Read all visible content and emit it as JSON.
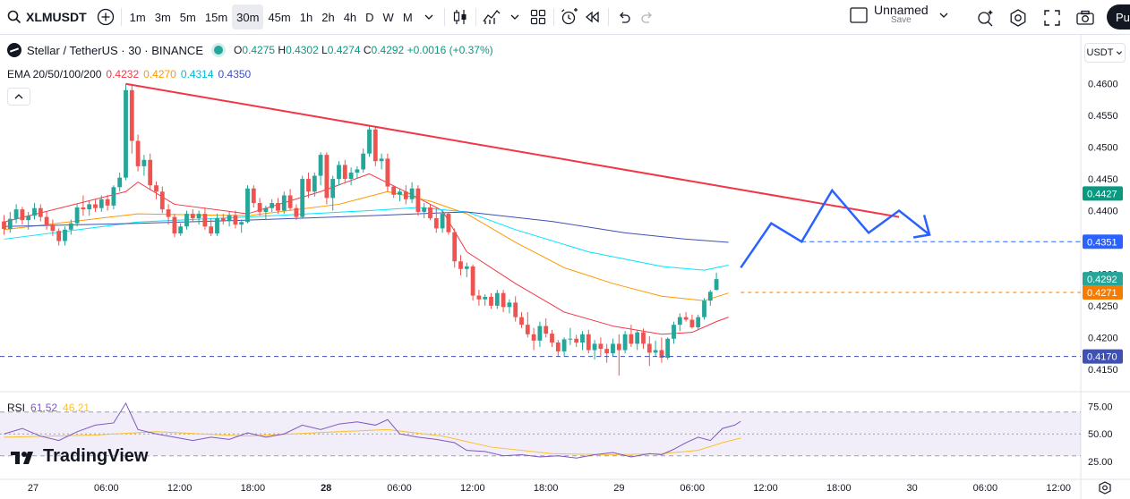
{
  "toolbar": {
    "symbol": "XLMUSDT",
    "intervals": [
      "1m",
      "3m",
      "5m",
      "15m",
      "30m",
      "45m",
      "1h",
      "2h",
      "4h",
      "D",
      "W",
      "M"
    ],
    "active_interval": "30m",
    "layout_name": "Unnamed",
    "layout_status": "Save",
    "publish_label": "Pu"
  },
  "legend": {
    "title": "Stellar / TetherUS · 30 · BINANCE",
    "o_label": "O",
    "o": "0.4275",
    "h_label": "H",
    "h": "0.4302",
    "l_label": "L",
    "l": "0.4274",
    "c_label": "C",
    "c": "0.4292",
    "change": "+0.0016 (+0.37%)"
  },
  "ema": {
    "label": "EMA 20/50/100/200",
    "values": [
      "0.4232",
      "0.4270",
      "0.4314",
      "0.4350"
    ],
    "colors": [
      "#f23645",
      "#ff9800",
      "#00e5ff",
      "#3f51b5"
    ]
  },
  "rsi": {
    "label": "RSI",
    "value": "61.52",
    "ma": "46.21",
    "line_color": "#7e57c2",
    "ma_color": "#fbc02d"
  },
  "unit": "USDT",
  "brand": "TradingView",
  "colors": {
    "up": "#26a69a",
    "down": "#ef5350",
    "trendline": "#f23645",
    "projection": "#2962ff",
    "support": "#3f51b5"
  },
  "chart_data": {
    "type": "candlestick",
    "price_axis": [
      "0.4600",
      "0.4550",
      "0.4500",
      "0.4450",
      "0.4400",
      "0.4350",
      "0.4300",
      "0.4250",
      "0.4200",
      "0.4150"
    ],
    "price_range": [
      0.4137,
      0.4625
    ],
    "price_tags": [
      {
        "value": "0.4427",
        "color": "#089981"
      },
      {
        "value": "0.4351",
        "color": "#2962ff"
      },
      {
        "value": "0.4292",
        "color": "#26a69a"
      },
      {
        "value": "0.4271",
        "color": "#f57c00"
      },
      {
        "value": "0.4170",
        "color": "#3f51b5"
      }
    ],
    "time_axis": [
      "27",
      "06:00",
      "12:00",
      "18:00",
      "28",
      "06:00",
      "12:00",
      "18:00",
      "29",
      "06:00",
      "12:00",
      "18:00",
      "30",
      "06:00",
      "12:00"
    ],
    "rsi_axis": [
      "75.00",
      "50.00",
      "25.00"
    ],
    "rsi_range": [
      20,
      82
    ],
    "candles": [
      [
        0.4383,
        0.4393,
        0.4362,
        0.4371
      ],
      [
        0.4371,
        0.4398,
        0.4365,
        0.4387
      ],
      [
        0.4387,
        0.441,
        0.438,
        0.4402
      ],
      [
        0.4402,
        0.4406,
        0.4378,
        0.4385
      ],
      [
        0.4385,
        0.4398,
        0.437,
        0.4392
      ],
      [
        0.4392,
        0.4412,
        0.4386,
        0.4404
      ],
      [
        0.4404,
        0.441,
        0.4383,
        0.439
      ],
      [
        0.439,
        0.4398,
        0.437,
        0.4378
      ],
      [
        0.4378,
        0.4386,
        0.436,
        0.4368
      ],
      [
        0.4368,
        0.4372,
        0.4345,
        0.4352
      ],
      [
        0.4352,
        0.4375,
        0.4345,
        0.437
      ],
      [
        0.437,
        0.4386,
        0.4362,
        0.438
      ],
      [
        0.438,
        0.441,
        0.4375,
        0.4405
      ],
      [
        0.4405,
        0.4424,
        0.4392,
        0.4402
      ],
      [
        0.4402,
        0.4415,
        0.4392,
        0.441
      ],
      [
        0.441,
        0.4418,
        0.4398,
        0.4404
      ],
      [
        0.4404,
        0.4424,
        0.4398,
        0.4418
      ],
      [
        0.4418,
        0.4425,
        0.44,
        0.4408
      ],
      [
        0.4408,
        0.444,
        0.4402,
        0.4437
      ],
      [
        0.4437,
        0.446,
        0.443,
        0.4452
      ],
      [
        0.4452,
        0.46,
        0.4448,
        0.459
      ],
      [
        0.459,
        0.46,
        0.449,
        0.451
      ],
      [
        0.451,
        0.452,
        0.4462,
        0.447
      ],
      [
        0.447,
        0.4488,
        0.4455,
        0.448
      ],
      [
        0.448,
        0.449,
        0.4432,
        0.444
      ],
      [
        0.444,
        0.4446,
        0.4418,
        0.443
      ],
      [
        0.443,
        0.4438,
        0.4396,
        0.4402
      ],
      [
        0.4402,
        0.441,
        0.4378,
        0.439
      ],
      [
        0.439,
        0.4395,
        0.4358,
        0.4364
      ],
      [
        0.4364,
        0.438,
        0.436,
        0.4375
      ],
      [
        0.4375,
        0.44,
        0.437,
        0.4395
      ],
      [
        0.4395,
        0.4402,
        0.4382,
        0.4388
      ],
      [
        0.4388,
        0.44,
        0.4378,
        0.4395
      ],
      [
        0.4395,
        0.4405,
        0.437,
        0.4375
      ],
      [
        0.4375,
        0.4388,
        0.436,
        0.4364
      ],
      [
        0.4364,
        0.4395,
        0.436,
        0.4388
      ],
      [
        0.4388,
        0.4395,
        0.4378,
        0.4384
      ],
      [
        0.4384,
        0.4398,
        0.4375,
        0.4393
      ],
      [
        0.4393,
        0.44,
        0.4372,
        0.4378
      ],
      [
        0.4378,
        0.4386,
        0.4365,
        0.4382
      ],
      [
        0.4382,
        0.444,
        0.438,
        0.4435
      ],
      [
        0.4435,
        0.444,
        0.4405,
        0.4412
      ],
      [
        0.4412,
        0.442,
        0.4392,
        0.4398
      ],
      [
        0.4398,
        0.4408,
        0.4385,
        0.4404
      ],
      [
        0.4404,
        0.4418,
        0.4398,
        0.4412
      ],
      [
        0.4412,
        0.442,
        0.4395,
        0.44
      ],
      [
        0.44,
        0.443,
        0.4395,
        0.4424
      ],
      [
        0.4424,
        0.4434,
        0.44,
        0.4404
      ],
      [
        0.4404,
        0.441,
        0.4385,
        0.439
      ],
      [
        0.439,
        0.4455,
        0.4388,
        0.445
      ],
      [
        0.445,
        0.446,
        0.442,
        0.443
      ],
      [
        0.443,
        0.446,
        0.4422,
        0.4455
      ],
      [
        0.4455,
        0.4492,
        0.444,
        0.4488
      ],
      [
        0.4488,
        0.4492,
        0.441,
        0.442
      ],
      [
        0.442,
        0.4455,
        0.44,
        0.445
      ],
      [
        0.445,
        0.4478,
        0.444,
        0.4472
      ],
      [
        0.4472,
        0.448,
        0.4445,
        0.445
      ],
      [
        0.445,
        0.4468,
        0.444,
        0.446
      ],
      [
        0.446,
        0.447,
        0.445,
        0.4465
      ],
      [
        0.4465,
        0.4498,
        0.446,
        0.449
      ],
      [
        0.449,
        0.4535,
        0.4485,
        0.4528
      ],
      [
        0.4528,
        0.4532,
        0.447,
        0.4478
      ],
      [
        0.4478,
        0.449,
        0.4465,
        0.4482
      ],
      [
        0.4482,
        0.449,
        0.443,
        0.4438
      ],
      [
        0.4438,
        0.444,
        0.442,
        0.4425
      ],
      [
        0.4425,
        0.4434,
        0.4415,
        0.443
      ],
      [
        0.443,
        0.444,
        0.441,
        0.4418
      ],
      [
        0.4418,
        0.4445,
        0.4412,
        0.4435
      ],
      [
        0.4435,
        0.444,
        0.4392,
        0.4398
      ],
      [
        0.4398,
        0.4412,
        0.4388,
        0.4405
      ],
      [
        0.4405,
        0.441,
        0.4385,
        0.4388
      ],
      [
        0.4388,
        0.4405,
        0.4365,
        0.4372
      ],
      [
        0.4372,
        0.44,
        0.4365,
        0.4395
      ],
      [
        0.4395,
        0.4398,
        0.4362,
        0.4366
      ],
      [
        0.4366,
        0.4372,
        0.431,
        0.432
      ],
      [
        0.432,
        0.433,
        0.4298,
        0.4308
      ],
      [
        0.4308,
        0.4318,
        0.4295,
        0.4312
      ],
      [
        0.4312,
        0.4315,
        0.4258,
        0.4266
      ],
      [
        0.4266,
        0.4275,
        0.425,
        0.426
      ],
      [
        0.426,
        0.4268,
        0.425,
        0.4264
      ],
      [
        0.4264,
        0.427,
        0.4245,
        0.425
      ],
      [
        0.425,
        0.4275,
        0.4245,
        0.427
      ],
      [
        0.427,
        0.4275,
        0.424,
        0.4248
      ],
      [
        0.4248,
        0.426,
        0.4238,
        0.4255
      ],
      [
        0.4255,
        0.4265,
        0.4225,
        0.4232
      ],
      [
        0.4232,
        0.424,
        0.4215,
        0.422
      ],
      [
        0.422,
        0.424,
        0.42,
        0.4205
      ],
      [
        0.4205,
        0.4215,
        0.418,
        0.4195
      ],
      [
        0.4195,
        0.4225,
        0.4185,
        0.4218
      ],
      [
        0.4218,
        0.423,
        0.42,
        0.4206
      ],
      [
        0.4206,
        0.4212,
        0.4185,
        0.4192
      ],
      [
        0.4192,
        0.4196,
        0.417,
        0.4178
      ],
      [
        0.4178,
        0.42,
        0.417,
        0.4197
      ],
      [
        0.4197,
        0.4215,
        0.4188,
        0.4198
      ],
      [
        0.4198,
        0.4204,
        0.4185,
        0.4192
      ],
      [
        0.4192,
        0.421,
        0.418,
        0.4205
      ],
      [
        0.4205,
        0.4212,
        0.4175,
        0.418
      ],
      [
        0.418,
        0.4196,
        0.4165,
        0.419
      ],
      [
        0.419,
        0.42,
        0.417,
        0.4182
      ],
      [
        0.4182,
        0.419,
        0.416,
        0.4175
      ],
      [
        0.4175,
        0.4198,
        0.417,
        0.419
      ],
      [
        0.419,
        0.4205,
        0.414,
        0.418
      ],
      [
        0.418,
        0.421,
        0.4175,
        0.4205
      ],
      [
        0.4205,
        0.422,
        0.4185,
        0.419
      ],
      [
        0.419,
        0.4212,
        0.418,
        0.4208
      ],
      [
        0.4208,
        0.4214,
        0.4182,
        0.419
      ],
      [
        0.419,
        0.4202,
        0.4155,
        0.4176
      ],
      [
        0.4176,
        0.4195,
        0.417,
        0.418
      ],
      [
        0.418,
        0.42,
        0.416,
        0.4168
      ],
      [
        0.4168,
        0.42,
        0.4165,
        0.4198
      ],
      [
        0.4198,
        0.4225,
        0.419,
        0.422
      ],
      [
        0.422,
        0.4238,
        0.421,
        0.4232
      ],
      [
        0.4232,
        0.424,
        0.4225,
        0.4228
      ],
      [
        0.4228,
        0.4236,
        0.4214,
        0.4216
      ],
      [
        0.4216,
        0.4236,
        0.4212,
        0.4232
      ],
      [
        0.4232,
        0.4262,
        0.4228,
        0.4258
      ],
      [
        0.4258,
        0.4275,
        0.425,
        0.4272
      ],
      [
        0.4275,
        0.4302,
        0.4274,
        0.4292
      ]
    ],
    "ema": {
      "ema20": [
        [
          0,
          0.4382
        ],
        [
          20,
          0.443
        ],
        [
          22,
          0.4445
        ],
        [
          28,
          0.441
        ],
        [
          40,
          0.4395
        ],
        [
          52,
          0.443
        ],
        [
          60,
          0.4458
        ],
        [
          68,
          0.442
        ],
        [
          72,
          0.44
        ],
        [
          76,
          0.4335
        ],
        [
          84,
          0.4285
        ],
        [
          92,
          0.424
        ],
        [
          100,
          0.4218
        ],
        [
          108,
          0.4205
        ],
        [
          113,
          0.4208
        ],
        [
          117,
          0.4225
        ],
        [
          119,
          0.4232
        ]
      ],
      "ema50": [
        [
          0,
          0.437
        ],
        [
          22,
          0.4395
        ],
        [
          40,
          0.4392
        ],
        [
          55,
          0.441
        ],
        [
          63,
          0.443
        ],
        [
          70,
          0.4415
        ],
        [
          76,
          0.4395
        ],
        [
          84,
          0.435
        ],
        [
          92,
          0.431
        ],
        [
          100,
          0.4285
        ],
        [
          108,
          0.4265
        ],
        [
          115,
          0.4258
        ],
        [
          119,
          0.427
        ]
      ],
      "ema100": [
        [
          0,
          0.4355
        ],
        [
          22,
          0.4382
        ],
        [
          40,
          0.439
        ],
        [
          60,
          0.44
        ],
        [
          68,
          0.4405
        ],
        [
          76,
          0.4398
        ],
        [
          84,
          0.437
        ],
        [
          96,
          0.4335
        ],
        [
          108,
          0.4312
        ],
        [
          115,
          0.4306
        ],
        [
          119,
          0.4314
        ]
      ],
      "ema200": [
        [
          0,
          0.4375
        ],
        [
          22,
          0.438
        ],
        [
          40,
          0.4385
        ],
        [
          60,
          0.4392
        ],
        [
          76,
          0.4398
        ],
        [
          90,
          0.4383
        ],
        [
          102,
          0.4365
        ],
        [
          112,
          0.4355
        ],
        [
          119,
          0.435
        ]
      ]
    },
    "rsi": [
      [
        0,
        50
      ],
      [
        3,
        55
      ],
      [
        6,
        48
      ],
      [
        9,
        44
      ],
      [
        12,
        52
      ],
      [
        15,
        58
      ],
      [
        18,
        60
      ],
      [
        20,
        78
      ],
      [
        22,
        54
      ],
      [
        25,
        50
      ],
      [
        28,
        47
      ],
      [
        31,
        44
      ],
      [
        34,
        47
      ],
      [
        37,
        45
      ],
      [
        40,
        51
      ],
      [
        43,
        47
      ],
      [
        46,
        50
      ],
      [
        49,
        58
      ],
      [
        52,
        54
      ],
      [
        55,
        59
      ],
      [
        58,
        61
      ],
      [
        61,
        58
      ],
      [
        63,
        63
      ],
      [
        65,
        50
      ],
      [
        68,
        47
      ],
      [
        71,
        45
      ],
      [
        74,
        42
      ],
      [
        76,
        35
      ],
      [
        79,
        34
      ],
      [
        82,
        30
      ],
      [
        85,
        31
      ],
      [
        88,
        29
      ],
      [
        91,
        30
      ],
      [
        94,
        28
      ],
      [
        97,
        31
      ],
      [
        100,
        33
      ],
      [
        103,
        29
      ],
      [
        106,
        32
      ],
      [
        108,
        31
      ],
      [
        110,
        36
      ],
      [
        112,
        42
      ],
      [
        114,
        47
      ],
      [
        116,
        44
      ],
      [
        118,
        55
      ],
      [
        120,
        58
      ],
      [
        121,
        61.5
      ]
    ],
    "rsi_ma": [
      [
        0,
        47
      ],
      [
        15,
        49
      ],
      [
        25,
        52
      ],
      [
        40,
        48
      ],
      [
        55,
        52
      ],
      [
        63,
        54
      ],
      [
        72,
        48
      ],
      [
        80,
        38
      ],
      [
        90,
        32
      ],
      [
        100,
        31
      ],
      [
        108,
        32
      ],
      [
        114,
        35
      ],
      [
        118,
        42
      ],
      [
        121,
        46.2
      ]
    ],
    "trendline": [
      [
        20,
        0.46
      ],
      [
        147,
        0.439
      ]
    ],
    "projection": [
      [
        121,
        0.431
      ],
      [
        126,
        0.438
      ],
      [
        131,
        0.4351
      ],
      [
        136,
        0.4432
      ],
      [
        142,
        0.4365
      ],
      [
        147,
        0.44
      ],
      [
        152,
        0.4362
      ]
    ],
    "support_level": 0.417,
    "resistance_level": 0.4351
  }
}
